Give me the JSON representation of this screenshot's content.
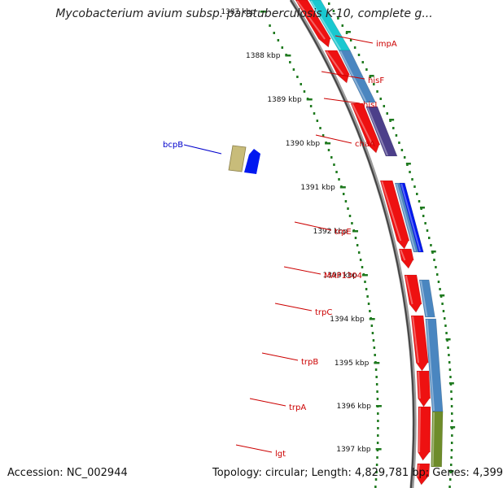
{
  "title": "Mycobacterium avium subsp. paratuberculosis K-10, complete g...",
  "footer": {
    "accession": "Accession: NC_002944",
    "summary": "Topology: circular; Length: 4,829,781 bp; Genes: 4,399"
  },
  "colors": {
    "red_gene": "#ee1111",
    "steelblue": "#4a86c0",
    "cyan": "#19c8d0",
    "purple": "#4c3f8a",
    "blue": "#0018f0",
    "olive": "#6e8c2a",
    "khaki": "#c8bc7a",
    "tick_green": "#1f7a1f",
    "label_red": "#cc0000",
    "label_blue": "#0000cc"
  },
  "tick_labels": [
    "1387 kbp",
    "1388 kbp",
    "1389 kbp",
    "1390 kbp",
    "1391 kbp",
    "1392 kbp",
    "1393 kbp",
    "1394 kbp",
    "1395 kbp",
    "1396 kbp",
    "1397 kbp"
  ],
  "gene_labels": [
    {
      "name": "impA",
      "color": "red"
    },
    {
      "name": "hisF",
      "color": "red"
    },
    {
      "name": "hisI",
      "color": "red"
    },
    {
      "name": "chaA",
      "color": "red"
    },
    {
      "name": "bcpB",
      "color": "blue"
    },
    {
      "name": "trpE",
      "color": "red"
    },
    {
      "name": "MAP1304",
      "color": "red"
    },
    {
      "name": "trpC",
      "color": "red"
    },
    {
      "name": "trpB",
      "color": "red"
    },
    {
      "name": "trpA",
      "color": "red"
    },
    {
      "name": "lgt",
      "color": "red"
    }
  ]
}
